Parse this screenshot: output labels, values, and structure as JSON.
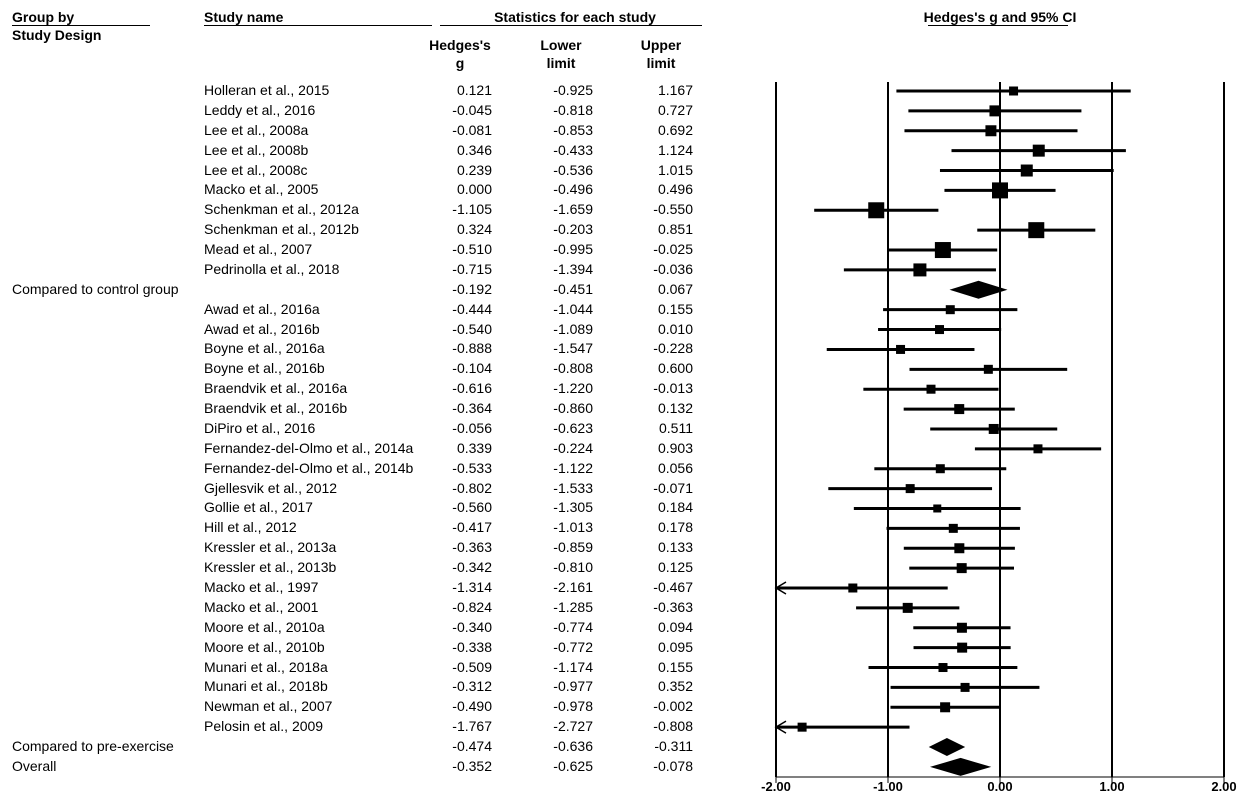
{
  "header": {
    "group_by": "Group by",
    "study_design": "Study Design",
    "study_name": "Study name",
    "stats_title": "Statistics for each study",
    "hedges_line1": "Hedges's",
    "hedges_line2": "g",
    "lower_line1": "Lower",
    "lower_line2": "limit",
    "upper_line1": "Upper",
    "upper_line2": "limit",
    "plot_title": "Hedges's g and 95% CI"
  },
  "chart_data": {
    "type": "forest",
    "title": "Hedges's g and 95% CI",
    "xlim": [
      -2.0,
      2.0
    ],
    "xticks": [
      "-2.00",
      "-1.00",
      "0.00",
      "1.00",
      "2.00"
    ],
    "xtick_values": [
      -2,
      -1,
      0,
      1,
      2
    ],
    "rows": [
      {
        "kind": "study",
        "name": "Holleran et al., 2015",
        "g": "0.121",
        "lower": "-0.925",
        "upper": "1.167",
        "marker": 9
      },
      {
        "kind": "study",
        "name": "Leddy et al., 2016",
        "g": "-0.045",
        "lower": "-0.818",
        "upper": "0.727",
        "marker": 11
      },
      {
        "kind": "study",
        "name": "Lee et al., 2008a",
        "g": "-0.081",
        "lower": "-0.853",
        "upper": "0.692",
        "marker": 11
      },
      {
        "kind": "study",
        "name": "Lee et al., 2008b",
        "g": "0.346",
        "lower": "-0.433",
        "upper": "1.124",
        "marker": 12
      },
      {
        "kind": "study",
        "name": "Lee et al., 2008c",
        "g": "0.239",
        "lower": "-0.536",
        "upper": "1.015",
        "marker": 12
      },
      {
        "kind": "study",
        "name": "Macko et al., 2005",
        "g": "0.000",
        "lower": "-0.496",
        "upper": "0.496",
        "marker": 16
      },
      {
        "kind": "study",
        "name": "Schenkman et al., 2012a",
        "g": "-1.105",
        "lower": "-1.659",
        "upper": "-0.550",
        "marker": 16
      },
      {
        "kind": "study",
        "name": "Schenkman et al., 2012b",
        "g": "0.324",
        "lower": "-0.203",
        "upper": "0.851",
        "marker": 16
      },
      {
        "kind": "study",
        "name": "Mead et al., 2007",
        "g": "-0.510",
        "lower": "-0.995",
        "upper": "-0.025",
        "marker": 16
      },
      {
        "kind": "study",
        "name": "Pedrinolla et al., 2018",
        "g": "-0.715",
        "lower": "-1.394",
        "upper": "-0.036",
        "marker": 13
      },
      {
        "kind": "subgroup",
        "name": "Compared to control group",
        "g": "-0.192",
        "lower": "-0.451",
        "upper": "0.067"
      },
      {
        "kind": "study",
        "name": "Awad et al., 2016a",
        "g": "-0.444",
        "lower": "-1.044",
        "upper": "0.155",
        "marker": 9
      },
      {
        "kind": "study",
        "name": "Awad et al., 2016b",
        "g": "-0.540",
        "lower": "-1.089",
        "upper": "0.010",
        "marker": 9
      },
      {
        "kind": "study",
        "name": "Boyne et al., 2016a",
        "g": "-0.888",
        "lower": "-1.547",
        "upper": "-0.228",
        "marker": 9
      },
      {
        "kind": "study",
        "name": "Boyne et al., 2016b",
        "g": "-0.104",
        "lower": "-0.808",
        "upper": "0.600",
        "marker": 9
      },
      {
        "kind": "study",
        "name": "Braendvik et al., 2016a",
        "g": "-0.616",
        "lower": "-1.220",
        "upper": "-0.013",
        "marker": 9
      },
      {
        "kind": "study",
        "name": "Braendvik et al., 2016b",
        "g": "-0.364",
        "lower": "-0.860",
        "upper": "0.132",
        "marker": 10
      },
      {
        "kind": "study",
        "name": "DiPiro et al., 2016",
        "g": "-0.056",
        "lower": "-0.623",
        "upper": "0.511",
        "marker": 10
      },
      {
        "kind": "study",
        "name": "Fernandez-del-Olmo et al., 2014a",
        "g": "0.339",
        "lower": "-0.224",
        "upper": "0.903",
        "marker": 9
      },
      {
        "kind": "study",
        "name": "Fernandez-del-Olmo et al., 2014b",
        "g": "-0.533",
        "lower": "-1.122",
        "upper": "0.056",
        "marker": 9
      },
      {
        "kind": "study",
        "name": "Gjellesvik et al., 2012",
        "g": "-0.802",
        "lower": "-1.533",
        "upper": "-0.071",
        "marker": 9
      },
      {
        "kind": "study",
        "name": "Gollie et al., 2017",
        "g": "-0.560",
        "lower": "-1.305",
        "upper": "0.184",
        "marker": 8
      },
      {
        "kind": "study",
        "name": "Hill et al., 2012",
        "g": "-0.417",
        "lower": "-1.013",
        "upper": "0.178",
        "marker": 9
      },
      {
        "kind": "study",
        "name": "Kressler et al., 2013a",
        "g": "-0.363",
        "lower": "-0.859",
        "upper": "0.133",
        "marker": 10
      },
      {
        "kind": "study",
        "name": "Kressler et al., 2013b",
        "g": "-0.342",
        "lower": "-0.810",
        "upper": "0.125",
        "marker": 10
      },
      {
        "kind": "study",
        "name": "Macko et al., 1997",
        "g": "-1.314",
        "lower": "-2.161",
        "upper": "-0.467",
        "marker": 9,
        "arrow_left": true
      },
      {
        "kind": "study",
        "name": "Macko et al., 2001",
        "g": "-0.824",
        "lower": "-1.285",
        "upper": "-0.363",
        "marker": 10
      },
      {
        "kind": "study",
        "name": "Moore et al., 2010a",
        "g": "-0.340",
        "lower": "-0.774",
        "upper": "0.094",
        "marker": 10
      },
      {
        "kind": "study",
        "name": "Moore et al., 2010b",
        "g": "-0.338",
        "lower": "-0.772",
        "upper": "0.095",
        "marker": 10
      },
      {
        "kind": "study",
        "name": "Munari et al., 2018a",
        "g": "-0.509",
        "lower": "-1.174",
        "upper": "0.155",
        "marker": 9
      },
      {
        "kind": "study",
        "name": "Munari et al., 2018b",
        "g": "-0.312",
        "lower": "-0.977",
        "upper": "0.352",
        "marker": 9
      },
      {
        "kind": "study",
        "name": "Newman et al., 2007",
        "g": "-0.490",
        "lower": "-0.978",
        "upper": "-0.002",
        "marker": 10
      },
      {
        "kind": "study",
        "name": "Pelosin et al., 2009",
        "g": "-1.767",
        "lower": "-2.727",
        "upper": "-0.808",
        "marker": 9,
        "arrow_left": true
      },
      {
        "kind": "subgroup",
        "name": "Compared to pre-exercise",
        "g": "-0.474",
        "lower": "-0.636",
        "upper": "-0.311"
      },
      {
        "kind": "overall",
        "name": "Overall",
        "g": "-0.352",
        "lower": "-0.625",
        "upper": "-0.078"
      }
    ]
  }
}
